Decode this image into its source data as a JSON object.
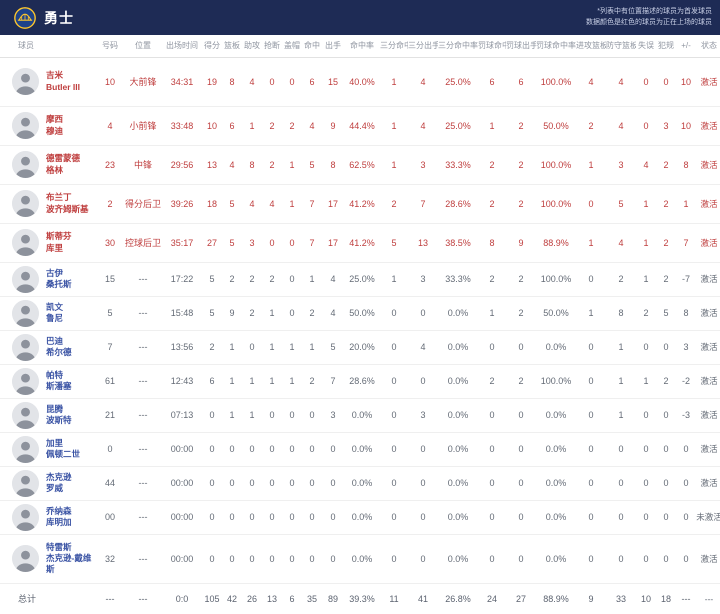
{
  "team_header": {
    "team_name": "勇士",
    "note_line1": "*列表中有位置描述的球员为首发球员",
    "note_line2": "数据颜色是红色的球员为正在上场的球员"
  },
  "colors": {
    "header_bg": "#1e2b55",
    "on_court_text": "#bf3e3e",
    "bench_name_text": "#3a53a4",
    "bench_stat_text": "#646b76",
    "logo_blue": "#1d428a",
    "logo_gold": "#ffc72c"
  },
  "table": {
    "columns": [
      "球员",
      "号码",
      "位置",
      "出场时间",
      "得分",
      "篮板",
      "助攻",
      "抢断",
      "盖帽",
      "命中",
      "出手",
      "命中率",
      "三分命中",
      "三分出手",
      "三分命中率",
      "罚球命中",
      "罚球出手",
      "罚球命中率",
      "进攻篮板",
      "防守篮板",
      "失误",
      "犯规",
      "+/-",
      "状态"
    ],
    "players": [
      {
        "name_line1": "吉米",
        "name_line2": "Butler III",
        "number": "10",
        "position": "大前锋",
        "minutes": "34:31",
        "stats": [
          "19",
          "8",
          "4",
          "0",
          "0",
          "6",
          "15",
          "40.0%",
          "1",
          "4",
          "25.0%",
          "6",
          "6",
          "100.0%",
          "4",
          "4",
          "0",
          "0",
          "10"
        ],
        "status": "激活",
        "on_court": true
      },
      {
        "name_line1": "摩西",
        "name_line2": "穆迪",
        "number": "4",
        "position": "小前锋",
        "minutes": "33:48",
        "stats": [
          "10",
          "6",
          "1",
          "2",
          "2",
          "4",
          "9",
          "44.4%",
          "1",
          "4",
          "25.0%",
          "1",
          "2",
          "50.0%",
          "2",
          "4",
          "0",
          "3",
          "10"
        ],
        "status": "激活",
        "on_court": true
      },
      {
        "name_line1": "德雷蒙德",
        "name_line2": "格林",
        "number": "23",
        "position": "中锋",
        "minutes": "29:56",
        "stats": [
          "13",
          "4",
          "8",
          "2",
          "1",
          "5",
          "8",
          "62.5%",
          "1",
          "3",
          "33.3%",
          "2",
          "2",
          "100.0%",
          "1",
          "3",
          "4",
          "2",
          "8"
        ],
        "status": "激活",
        "on_court": true
      },
      {
        "name_line1": "布兰丁",
        "name_line2": "波齐姆斯基",
        "number": "2",
        "position": "得分后卫",
        "minutes": "39:26",
        "stats": [
          "18",
          "5",
          "4",
          "4",
          "1",
          "7",
          "17",
          "41.2%",
          "2",
          "7",
          "28.6%",
          "2",
          "2",
          "100.0%",
          "0",
          "5",
          "1",
          "2",
          "1"
        ],
        "status": "激活",
        "on_court": true
      },
      {
        "name_line1": "斯蒂芬",
        "name_line2": "库里",
        "number": "30",
        "position": "控球后卫",
        "minutes": "35:17",
        "stats": [
          "27",
          "5",
          "3",
          "0",
          "0",
          "7",
          "17",
          "41.2%",
          "5",
          "13",
          "38.5%",
          "8",
          "9",
          "88.9%",
          "1",
          "4",
          "1",
          "2",
          "7"
        ],
        "status": "激活",
        "on_court": true
      },
      {
        "name_line1": "古伊",
        "name_line2": "桑托斯",
        "number": "15",
        "position": "---",
        "minutes": "17:22",
        "stats": [
          "5",
          "2",
          "2",
          "2",
          "0",
          "1",
          "4",
          "25.0%",
          "1",
          "3",
          "33.3%",
          "2",
          "2",
          "100.0%",
          "0",
          "2",
          "1",
          "2",
          "-7"
        ],
        "status": "激活",
        "on_court": false
      },
      {
        "name_line1": "凯文",
        "name_line2": "鲁尼",
        "number": "5",
        "position": "---",
        "minutes": "15:48",
        "stats": [
          "5",
          "9",
          "2",
          "1",
          "0",
          "2",
          "4",
          "50.0%",
          "0",
          "0",
          "0.0%",
          "1",
          "2",
          "50.0%",
          "1",
          "8",
          "2",
          "5",
          "8"
        ],
        "status": "激活",
        "on_court": false
      },
      {
        "name_line1": "巴迪",
        "name_line2": "希尔德",
        "number": "7",
        "position": "---",
        "minutes": "13:56",
        "stats": [
          "2",
          "1",
          "0",
          "1",
          "1",
          "1",
          "5",
          "20.0%",
          "0",
          "4",
          "0.0%",
          "0",
          "0",
          "0.0%",
          "0",
          "1",
          "0",
          "0",
          "3"
        ],
        "status": "激活",
        "on_court": false
      },
      {
        "name_line1": "帕特",
        "name_line2": "斯潘塞",
        "number": "61",
        "position": "---",
        "minutes": "12:43",
        "stats": [
          "6",
          "1",
          "1",
          "1",
          "1",
          "2",
          "7",
          "28.6%",
          "0",
          "0",
          "0.0%",
          "2",
          "2",
          "100.0%",
          "0",
          "1",
          "1",
          "2",
          "-2"
        ],
        "status": "激活",
        "on_court": false
      },
      {
        "name_line1": "昆腾",
        "name_line2": "波斯特",
        "number": "21",
        "position": "---",
        "minutes": "07:13",
        "stats": [
          "0",
          "1",
          "1",
          "0",
          "0",
          "0",
          "3",
          "0.0%",
          "0",
          "3",
          "0.0%",
          "0",
          "0",
          "0.0%",
          "0",
          "1",
          "0",
          "0",
          "-3"
        ],
        "status": "激活",
        "on_court": false
      },
      {
        "name_line1": "加里",
        "name_line2": "佩顿二世",
        "number": "0",
        "position": "---",
        "minutes": "00:00",
        "stats": [
          "0",
          "0",
          "0",
          "0",
          "0",
          "0",
          "0",
          "0.0%",
          "0",
          "0",
          "0.0%",
          "0",
          "0",
          "0.0%",
          "0",
          "0",
          "0",
          "0",
          "0"
        ],
        "status": "激活",
        "on_court": false
      },
      {
        "name_line1": "杰克逊",
        "name_line2": "罗威",
        "number": "44",
        "position": "---",
        "minutes": "00:00",
        "stats": [
          "0",
          "0",
          "0",
          "0",
          "0",
          "0",
          "0",
          "0.0%",
          "0",
          "0",
          "0.0%",
          "0",
          "0",
          "0.0%",
          "0",
          "0",
          "0",
          "0",
          "0"
        ],
        "status": "激活",
        "on_court": false
      },
      {
        "name_line1": "乔纳森",
        "name_line2": "库明加",
        "number": "00",
        "position": "---",
        "minutes": "00:00",
        "stats": [
          "0",
          "0",
          "0",
          "0",
          "0",
          "0",
          "0",
          "0.0%",
          "0",
          "0",
          "0.0%",
          "0",
          "0",
          "0.0%",
          "0",
          "0",
          "0",
          "0",
          "0"
        ],
        "status": "未激活",
        "on_court": false
      },
      {
        "name_line1": "特雷斯",
        "name_line2": "杰克逊-戴维斯",
        "number": "32",
        "position": "---",
        "minutes": "00:00",
        "stats": [
          "0",
          "0",
          "0",
          "0",
          "0",
          "0",
          "0",
          "0.0%",
          "0",
          "0",
          "0.0%",
          "0",
          "0",
          "0.0%",
          "0",
          "0",
          "0",
          "0",
          "0"
        ],
        "status": "激活",
        "on_court": false
      }
    ],
    "totals": {
      "label": "总计",
      "number": "---",
      "position": "---",
      "minutes": "0:0",
      "stats": [
        "105",
        "42",
        "26",
        "13",
        "6",
        "35",
        "89",
        "39.3%",
        "11",
        "41",
        "26.8%",
        "24",
        "27",
        "88.9%",
        "9",
        "33",
        "10",
        "18",
        "---"
      ],
      "status": "---"
    }
  }
}
